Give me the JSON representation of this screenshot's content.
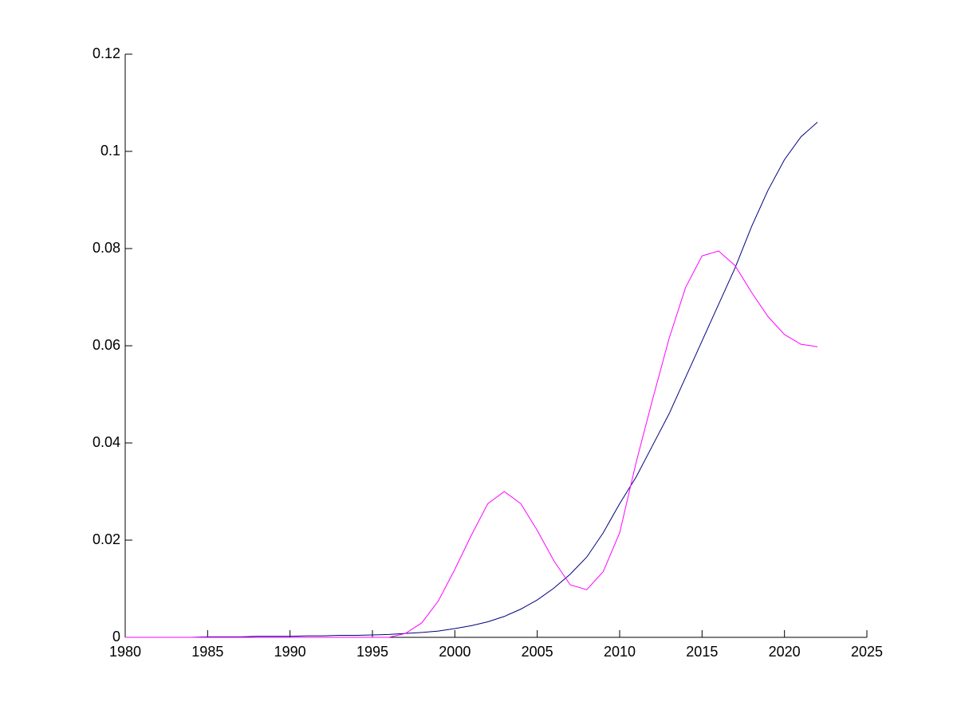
{
  "chart_data": {
    "type": "line",
    "x": [
      1980,
      1981,
      1982,
      1983,
      1984,
      1985,
      1986,
      1987,
      1988,
      1989,
      1990,
      1991,
      1992,
      1993,
      1994,
      1995,
      1996,
      1997,
      1998,
      1999,
      2000,
      2001,
      2002,
      2003,
      2004,
      2005,
      2006,
      2007,
      2008,
      2009,
      2010,
      2011,
      2012,
      2013,
      2014,
      2015,
      2016,
      2017,
      2018,
      2019,
      2020,
      2021,
      2022
    ],
    "series": [
      {
        "color": "#00007f",
        "values": [
          0,
          0,
          0,
          0,
          0,
          0.0001,
          0.0001,
          0.0001,
          0.0002,
          0.0002,
          0.0002,
          0.0003,
          0.0003,
          0.0004,
          0.0004,
          0.0005,
          0.0006,
          0.0008,
          0.001,
          0.0013,
          0.0018,
          0.0024,
          0.0032,
          0.0043,
          0.0058,
          0.0077,
          0.0101,
          0.013,
          0.0165,
          0.0215,
          0.0275,
          0.033,
          0.0395,
          0.046,
          0.0535,
          0.061,
          0.0685,
          0.076,
          0.0845,
          0.092,
          0.0983,
          0.103,
          0.106
        ]
      },
      {
        "color": "#ff00ff",
        "values": [
          0,
          0,
          0,
          0,
          0,
          0,
          0,
          0,
          0,
          0,
          0,
          0,
          0,
          0,
          0,
          0,
          0,
          0.0008,
          0.003,
          0.0075,
          0.014,
          0.021,
          0.0275,
          0.03,
          0.0275,
          0.022,
          0.0158,
          0.0108,
          0.0098,
          0.0135,
          0.0215,
          0.036,
          0.049,
          0.0615,
          0.072,
          0.0785,
          0.0795,
          0.0765,
          0.071,
          0.066,
          0.0623,
          0.0603,
          0.0598
        ]
      }
    ],
    "xlim": [
      1980,
      2025
    ],
    "xticks": [
      1980,
      1985,
      1990,
      1995,
      2000,
      2005,
      2010,
      2015,
      2020,
      2025
    ],
    "ylim": [
      0,
      0.12
    ],
    "yticks": [
      0,
      0.02,
      0.04,
      0.06,
      0.08,
      0.1,
      0.12
    ]
  }
}
